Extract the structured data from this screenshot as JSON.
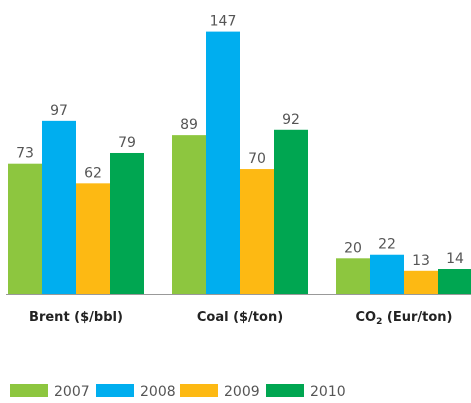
{
  "chart_data": {
    "type": "bar",
    "categories": [
      {
        "text": "Brent ($/bbl)"
      },
      {
        "text": "Coal ($/ton)"
      },
      {
        "prefix": "CO",
        "sub": "2",
        "suffix": " (Eur/ton)"
      }
    ],
    "series": [
      {
        "name": "2007",
        "color": "#8DC63F",
        "values": [
          73,
          89,
          20
        ]
      },
      {
        "name": "2008",
        "color": "#00AEEF",
        "values": [
          97,
          147,
          22
        ]
      },
      {
        "name": "2009",
        "color": "#FDB913",
        "values": [
          62,
          70,
          13
        ]
      },
      {
        "name": "2010",
        "color": "#00A651",
        "values": [
          79,
          92,
          14
        ]
      }
    ],
    "ylim": [
      0,
      160
    ],
    "grid": false,
    "legend": "bottom",
    "baseline_color": "#999999"
  }
}
